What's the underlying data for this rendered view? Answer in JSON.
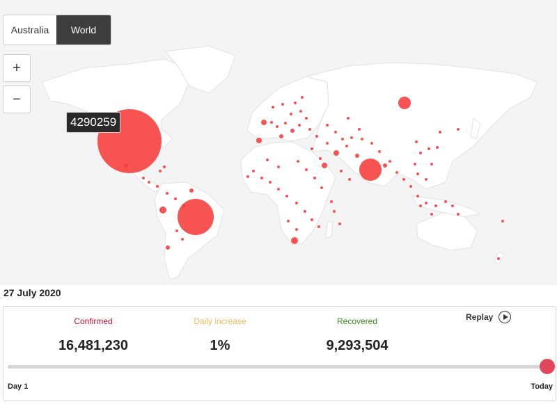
{
  "tabs": {
    "australia": "Australia",
    "world": "World"
  },
  "zoom": {
    "in_label": "+",
    "out_label": "−"
  },
  "tooltip": {
    "value": "4290259"
  },
  "date_label": "27 July 2020",
  "stats": {
    "confirmed_label": "Confirmed",
    "confirmed_value": "16,481,230",
    "daily_label": "Daily increase",
    "daily_value": "1%",
    "recovered_label": "Recovered",
    "recovered_value": "9,293,504"
  },
  "replay_label": "Replay",
  "slider": {
    "start_label": "Day 1",
    "end_label": "Today",
    "position_fraction": 1.0
  },
  "colors": {
    "map_bg": "#f4f4f4",
    "bubble": "#f73b3b",
    "confirmed": "#c8102e",
    "daily": "#f0b85a",
    "recovered": "#3a8a1f",
    "knob": "#e0475b",
    "active_tab": "#3d3d3d"
  }
}
